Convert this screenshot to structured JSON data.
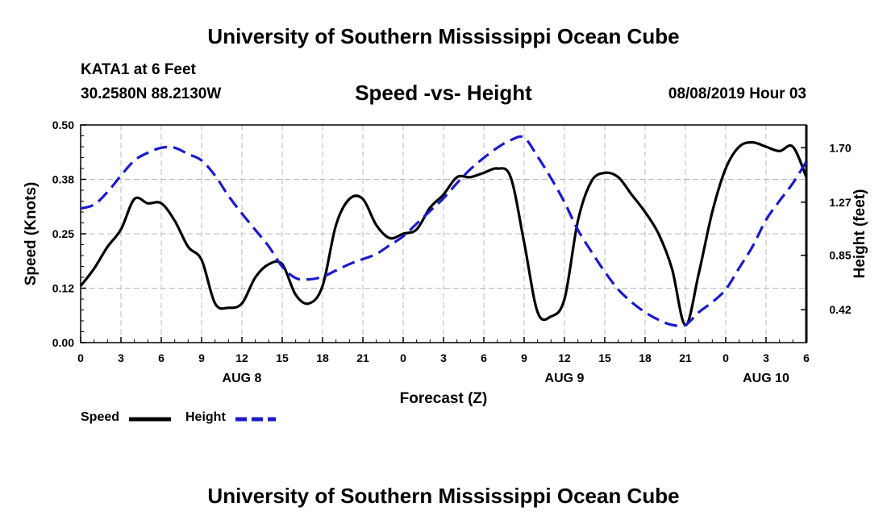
{
  "header": {
    "title": "University of Southern Mississippi Ocean Cube",
    "station": "KATA1 at 6 Feet",
    "coordinates": "30.2580N 88.2130W",
    "chart_title": "Speed -vs- Height",
    "datetime": "08/08/2019 Hour 03"
  },
  "footer": {
    "title": "University of Southern Mississippi Ocean Cube"
  },
  "legend": {
    "speed_label": "Speed",
    "height_label": "Height"
  },
  "colors": {
    "speed": "#000000",
    "height": "#1a1acc",
    "grid": "#bbbbbb"
  },
  "chart_data": {
    "type": "line",
    "title": "Speed -vs- Height",
    "xlabel": "Forecast (Z)",
    "ylabel": "Speed (Knots)",
    "y2label": "Height (feet)",
    "xlim": [
      0,
      54
    ],
    "ylim": [
      0,
      0.5
    ],
    "y2lim": [
      0.16,
      1.88
    ],
    "x_ticks": [
      0,
      3,
      6,
      9,
      12,
      15,
      18,
      21,
      24,
      27,
      30,
      33,
      36,
      39,
      42,
      45,
      48,
      51,
      54
    ],
    "x_tick_labels": [
      "0",
      "3",
      "6",
      "9",
      "12",
      "15",
      "18",
      "21",
      "0",
      "3",
      "6",
      "9",
      "12",
      "15",
      "18",
      "21",
      "0",
      "3",
      "6"
    ],
    "y_ticks": [
      0,
      0.125,
      0.25,
      0.375,
      0.5
    ],
    "y_tick_labels": [
      "0.00",
      "0.12",
      "0.25",
      "0.38",
      "0.50"
    ],
    "y2_ticks": [
      0.42,
      0.85,
      1.27,
      1.7
    ],
    "y2_tick_labels": [
      "0.42",
      "0.85",
      "1.27",
      "1.70"
    ],
    "date_labels": [
      {
        "x": 12,
        "label": "AUG 8"
      },
      {
        "x": 36,
        "label": "AUG 9"
      },
      {
        "x": 51,
        "label": "AUG 10"
      }
    ],
    "grid": true,
    "series": [
      {
        "name": "Speed",
        "axis": "left",
        "style": "solid",
        "x": [
          0,
          1,
          2,
          3,
          4,
          5,
          6,
          7,
          8,
          9,
          10,
          11,
          12,
          13,
          14,
          15,
          16,
          17,
          18,
          19,
          20,
          21,
          22,
          23,
          24,
          25,
          26,
          27,
          28,
          29,
          30,
          31,
          32,
          33,
          34,
          35,
          36,
          37,
          38,
          39,
          40,
          41,
          42,
          43,
          44,
          45,
          46,
          47,
          48,
          49,
          50,
          51,
          52,
          53,
          54
        ],
        "values": [
          0.13,
          0.17,
          0.22,
          0.26,
          0.33,
          0.32,
          0.32,
          0.28,
          0.22,
          0.19,
          0.09,
          0.08,
          0.09,
          0.15,
          0.18,
          0.18,
          0.11,
          0.09,
          0.13,
          0.27,
          0.33,
          0.33,
          0.27,
          0.24,
          0.25,
          0.26,
          0.31,
          0.34,
          0.38,
          0.38,
          0.39,
          0.4,
          0.38,
          0.23,
          0.07,
          0.06,
          0.1,
          0.28,
          0.37,
          0.39,
          0.38,
          0.34,
          0.3,
          0.25,
          0.17,
          0.04,
          0.16,
          0.3,
          0.4,
          0.45,
          0.46,
          0.45,
          0.44,
          0.45,
          0.38
        ]
      },
      {
        "name": "Height",
        "axis": "right",
        "style": "dashed",
        "x": [
          0,
          1,
          2,
          3,
          4,
          5,
          6,
          7,
          8,
          9,
          10,
          11,
          12,
          13,
          14,
          15,
          16,
          17,
          18,
          19,
          20,
          21,
          22,
          23,
          24,
          25,
          26,
          27,
          28,
          29,
          30,
          31,
          32,
          33,
          34,
          35,
          36,
          37,
          38,
          39,
          40,
          41,
          42,
          43,
          44,
          45,
          46,
          47,
          48,
          49,
          50,
          51,
          52,
          53,
          54
        ],
        "values": [
          1.22,
          1.25,
          1.35,
          1.48,
          1.6,
          1.66,
          1.7,
          1.7,
          1.65,
          1.6,
          1.48,
          1.32,
          1.18,
          1.05,
          0.92,
          0.76,
          0.67,
          0.66,
          0.68,
          0.73,
          0.78,
          0.82,
          0.86,
          0.93,
          1.0,
          1.1,
          1.2,
          1.3,
          1.42,
          1.53,
          1.62,
          1.7,
          1.76,
          1.78,
          1.63,
          1.46,
          1.27,
          1.05,
          0.88,
          0.72,
          0.58,
          0.48,
          0.4,
          0.34,
          0.3,
          0.3,
          0.4,
          0.48,
          0.58,
          0.75,
          0.92,
          1.13,
          1.28,
          1.42,
          1.59
        ]
      }
    ]
  }
}
